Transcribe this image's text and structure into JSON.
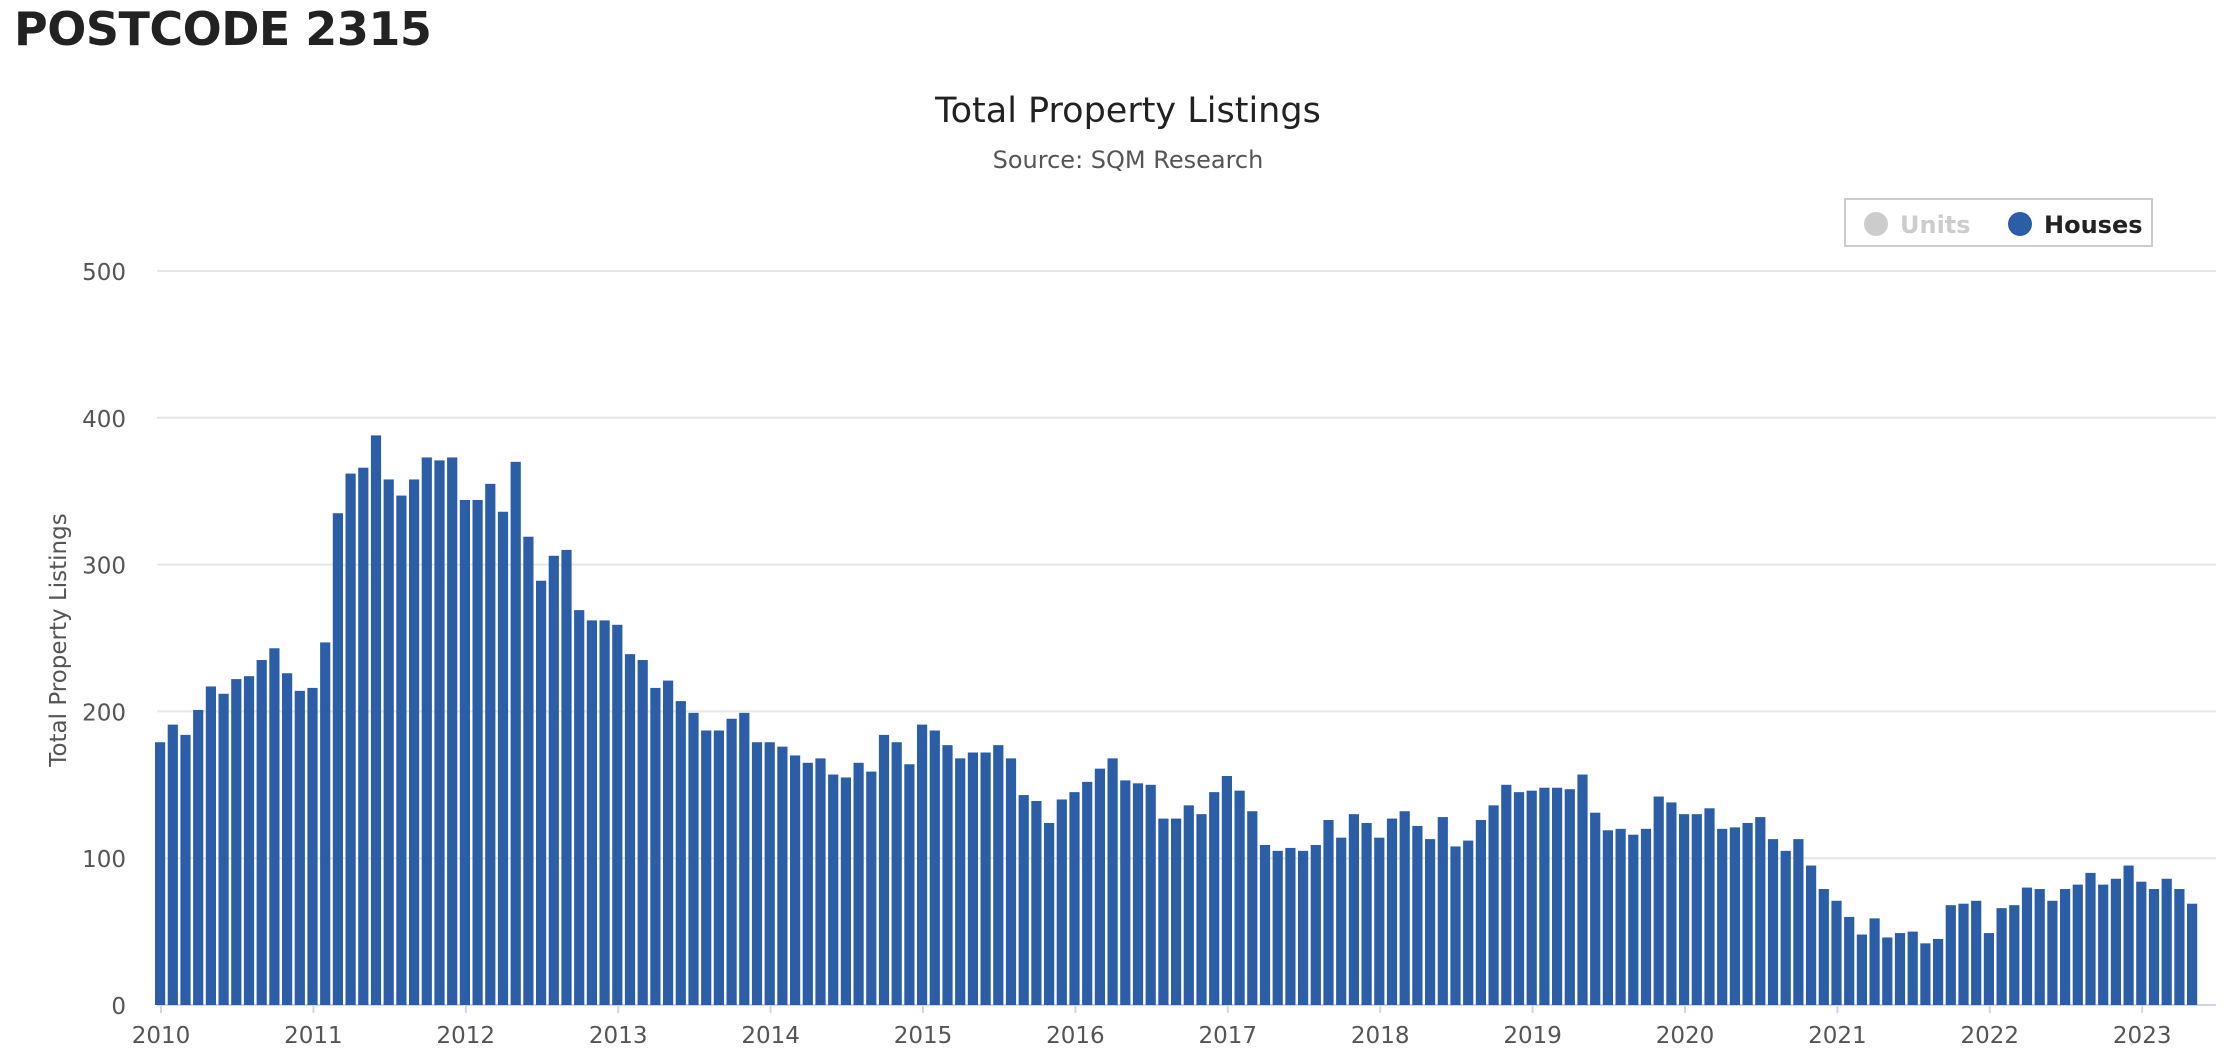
{
  "page": {
    "heading": "POSTCODE 2315"
  },
  "chart_data": {
    "type": "bar",
    "title": "Total Property Listings",
    "subtitle": "Source: SQM Research",
    "ylabel": "Total Property Listings",
    "xlabel": "",
    "ylim": [
      0,
      500
    ],
    "yticks": [
      0,
      100,
      200,
      300,
      400,
      500
    ],
    "xticks": [
      "2010",
      "2011",
      "2012",
      "2013",
      "2014",
      "2015",
      "2016",
      "2017",
      "2018",
      "2019",
      "2020",
      "2021",
      "2022",
      "2023"
    ],
    "x_start": "2010-01",
    "grid": true,
    "legend": {
      "position": "top-right"
    },
    "series": [
      {
        "name": "Units",
        "visible": false,
        "color": "#cccccc",
        "values": []
      },
      {
        "name": "Houses",
        "visible": true,
        "color": "#2b5ea7",
        "values": [
          179,
          191,
          184,
          201,
          217,
          212,
          222,
          224,
          235,
          243,
          226,
          214,
          216,
          247,
          335,
          362,
          366,
          388,
          358,
          347,
          358,
          373,
          371,
          373,
          344,
          344,
          355,
          336,
          370,
          319,
          289,
          306,
          310,
          269,
          262,
          262,
          259,
          239,
          235,
          216,
          221,
          207,
          199,
          187,
          187,
          195,
          199,
          179,
          179,
          176,
          170,
          165,
          168,
          157,
          155,
          165,
          159,
          184,
          179,
          164,
          191,
          187,
          177,
          168,
          172,
          172,
          177,
          168,
          143,
          139,
          124,
          140,
          145,
          152,
          161,
          168,
          153,
          151,
          150,
          127,
          127,
          136,
          130,
          145,
          156,
          146,
          132,
          109,
          105,
          107,
          105,
          109,
          126,
          114,
          130,
          124,
          114,
          127,
          132,
          122,
          113,
          128,
          108,
          112,
          126,
          136,
          150,
          145,
          146,
          148,
          148,
          147,
          157,
          131,
          119,
          120,
          116,
          120,
          142,
          138,
          130,
          130,
          134,
          120,
          121,
          124,
          128,
          113,
          105,
          113,
          95,
          79,
          71,
          60,
          48,
          59,
          46,
          49,
          50,
          42,
          45,
          68,
          69,
          71,
          49,
          66,
          68,
          80,
          79,
          71,
          79,
          82,
          90,
          82,
          86,
          95,
          84,
          79,
          86,
          79,
          69
        ]
      }
    ]
  }
}
